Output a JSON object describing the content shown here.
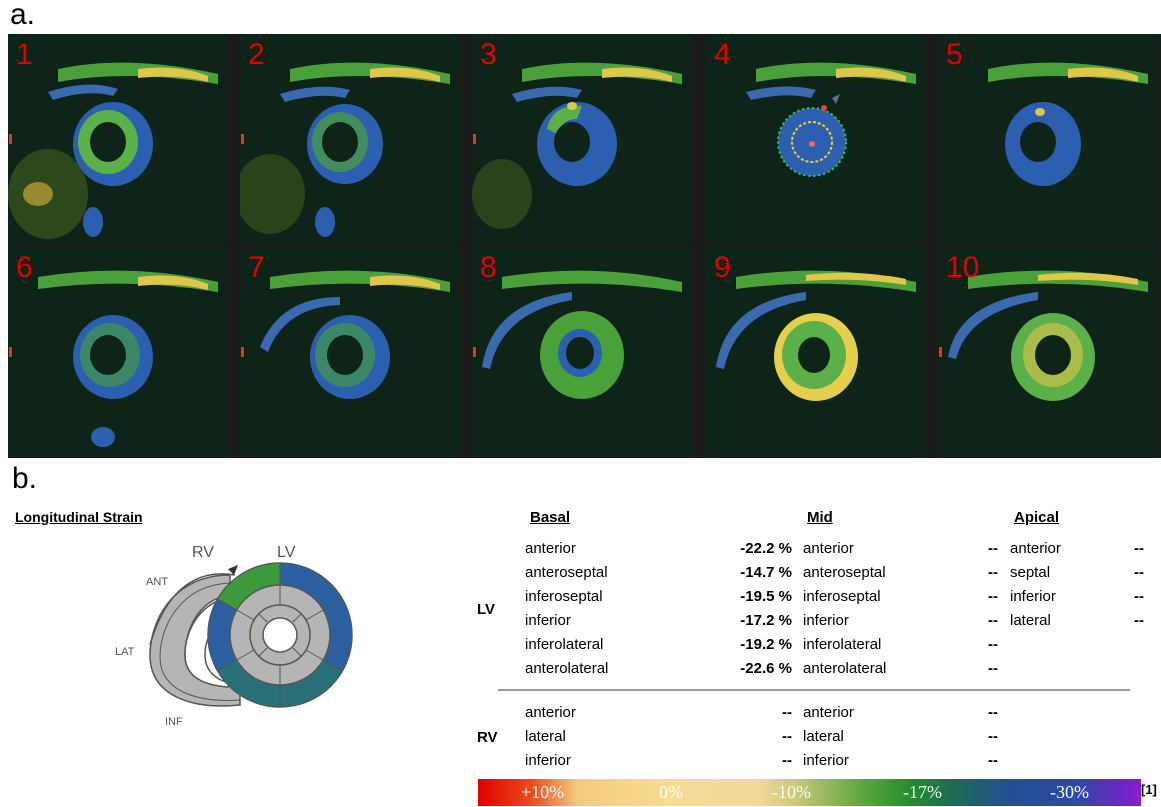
{
  "panel_labels": {
    "a": "a.",
    "b": "b."
  },
  "tiles": [
    "1",
    "2",
    "3",
    "4",
    "5",
    "6",
    "7",
    "8",
    "9",
    "10"
  ],
  "bullseye": {
    "title": "Longitudinal Strain",
    "rv_label": "RV",
    "lv_label": "LV",
    "rv_segments": {
      "ant": "ANT",
      "lat": "LAT",
      "inf": "INF"
    }
  },
  "table": {
    "headers": {
      "basal": "Basal",
      "mid": "Mid",
      "apical": "Apical"
    },
    "lv_label": "LV",
    "rv_label": "RV",
    "lv_rows": [
      {
        "basal": "anterior",
        "basal_val": "-22.2 %",
        "mid": "anterior",
        "mid_val": "--",
        "apical": "anterior",
        "apical_val": "--"
      },
      {
        "basal": "anteroseptal",
        "basal_val": "-14.7 %",
        "mid": "anteroseptal",
        "mid_val": "--",
        "apical": "septal",
        "apical_val": "--"
      },
      {
        "basal": "inferoseptal",
        "basal_val": "-19.5 %",
        "mid": "inferoseptal",
        "mid_val": "--",
        "apical": "inferior",
        "apical_val": "--"
      },
      {
        "basal": "inferior",
        "basal_val": "-17.2 %",
        "mid": "inferior",
        "mid_val": "--",
        "apical": "lateral",
        "apical_val": "--"
      },
      {
        "basal": "inferolateral",
        "basal_val": "-19.2 %",
        "mid": "inferolateral",
        "mid_val": "--",
        "apical": "",
        "apical_val": ""
      },
      {
        "basal": "anterolateral",
        "basal_val": "-22.6 %",
        "mid": "anterolateral",
        "mid_val": "--",
        "apical": "",
        "apical_val": ""
      }
    ],
    "rv_rows": [
      {
        "basal": "anterior",
        "basal_val": "--",
        "mid": "anterior",
        "mid_val": "--"
      },
      {
        "basal": "lateral",
        "basal_val": "--",
        "mid": "lateral",
        "mid_val": "--"
      },
      {
        "basal": "inferior",
        "basal_val": "--",
        "mid": "inferior",
        "mid_val": "--"
      }
    ]
  },
  "color_scale": {
    "labels": [
      "+10%",
      "0%",
      "-10%",
      "-17%",
      "-30%"
    ],
    "reference": "[1]"
  }
}
